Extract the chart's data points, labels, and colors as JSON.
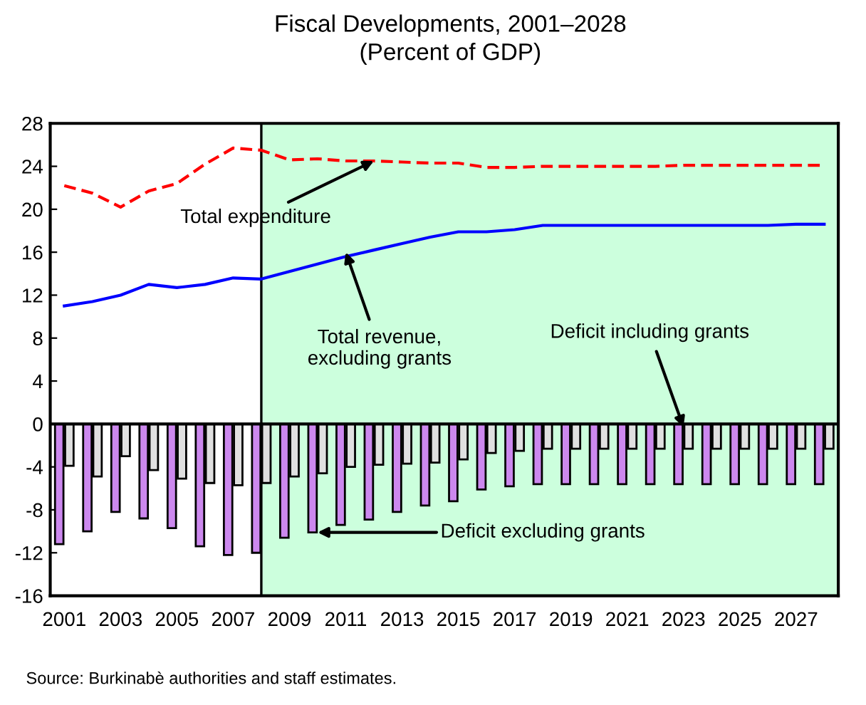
{
  "chart_data": {
    "type": "bar",
    "title": "Fiscal Developments, 2001–2028",
    "subtitle": "(Percent of GDP)",
    "x": [
      2001,
      2002,
      2003,
      2004,
      2005,
      2006,
      2007,
      2008,
      2009,
      2010,
      2011,
      2012,
      2013,
      2014,
      2015,
      2016,
      2017,
      2018,
      2019,
      2020,
      2021,
      2022,
      2023,
      2024,
      2025,
      2026,
      2027,
      2028
    ],
    "xlim": [
      2000.5,
      2028.5
    ],
    "xticks": [
      2001,
      2003,
      2005,
      2007,
      2009,
      2011,
      2013,
      2015,
      2017,
      2019,
      2021,
      2023,
      2025,
      2027
    ],
    "ylim": [
      -16,
      28
    ],
    "yticks": [
      -16,
      -12,
      -8,
      -4,
      0,
      4,
      8,
      12,
      16,
      20,
      24,
      28
    ],
    "grid": false,
    "series": [
      {
        "color": "#cc88ee",
        "values": [
          -11.2,
          -10.0,
          -8.2,
          -8.8,
          -9.7,
          -11.4,
          -12.2,
          -12.0,
          -10.6,
          -10.1,
          -9.4,
          -8.9,
          -8.2,
          -7.6,
          -7.2,
          -6.1,
          -5.8,
          -5.6,
          -5.6,
          -5.6,
          -5.6,
          -5.6,
          -5.6,
          -5.6,
          -5.6,
          -5.6,
          -5.6,
          -5.6
        ]
      },
      {
        "color": "#e0e0e0",
        "values": [
          -3.9,
          -4.9,
          -3.0,
          -4.3,
          -5.1,
          -5.5,
          -5.7,
          -5.5,
          -4.9,
          -4.6,
          -4.0,
          -3.8,
          -3.7,
          -3.6,
          -3.3,
          -2.7,
          -2.5,
          -2.3,
          -2.3,
          -2.3,
          -2.3,
          -2.3,
          -2.3,
          -2.3,
          -2.3,
          -2.3,
          -2.3,
          -2.3
        ]
      },
      {
        "type": "line",
        "color": "#ff0000",
        "line_style": "dashed",
        "values": [
          22.2,
          21.5,
          20.2,
          21.7,
          22.4,
          24.2,
          25.7,
          25.5,
          24.6,
          24.7,
          24.5,
          24.5,
          24.4,
          24.3,
          24.3,
          23.9,
          23.9,
          24.0,
          24.0,
          24.0,
          24.0,
          24.0,
          24.1,
          24.1,
          24.1,
          24.1,
          24.1,
          24.1
        ]
      },
      {
        "type": "line",
        "color": "#0000ff",
        "line_style": "solid",
        "values": [
          11.0,
          11.4,
          12.0,
          13.0,
          12.7,
          13.0,
          13.6,
          13.5,
          14.2,
          14.9,
          15.6,
          16.2,
          16.8,
          17.4,
          17.9,
          17.9,
          18.1,
          18.5,
          18.5,
          18.5,
          18.5,
          18.5,
          18.5,
          18.5,
          18.5,
          18.5,
          18.6,
          18.6
        ]
      }
    ],
    "bands": [
      {
        "axis": "x",
        "from": 2008,
        "to": 2028.5,
        "color": "#ccffdd"
      }
    ],
    "ref_lines": [
      {
        "axis": "y",
        "value": 0,
        "color": "#000000"
      },
      {
        "axis": "x",
        "value": 2008,
        "color": "#000000"
      }
    ],
    "annotations": [
      {
        "text": "Total expenditure",
        "x": 2012,
        "y": 24.5
      },
      {
        "text": "Total revenue,\nexcluding grants",
        "x": 2011,
        "y": 16.0
      },
      {
        "text": "Deficit including grants",
        "x": 2023,
        "y": -0.3
      },
      {
        "text": "Deficit excluding grants",
        "x": 2010,
        "y": -10.1
      },
      "Source: Burkinabè authorities and staff estimates."
    ]
  }
}
